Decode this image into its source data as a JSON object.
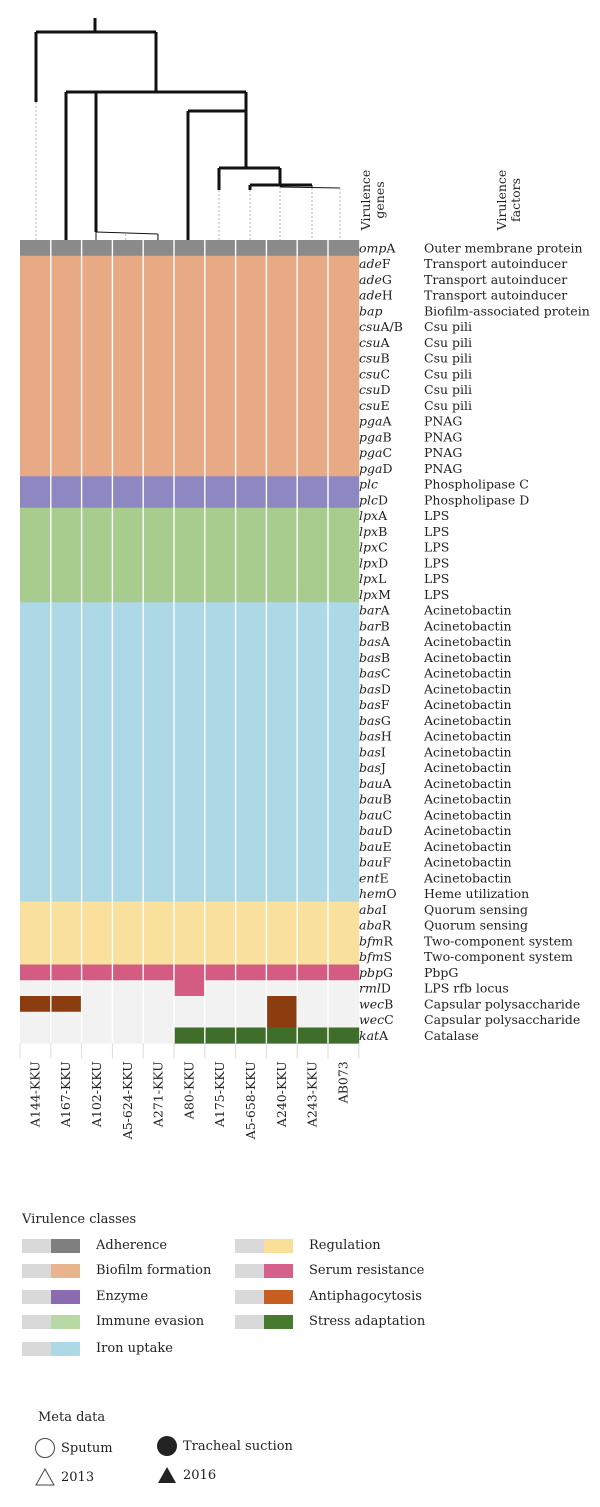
{
  "chart_data": {
    "type": "heatmap",
    "header_labels": {
      "genes": [
        "Virulence",
        "genes"
      ],
      "factors": [
        "Virulence",
        "factors"
      ]
    },
    "isolates": [
      "A144-KKU",
      "A167-KKU",
      "A102-KKU",
      "A5-624-KKU",
      "A271-KKU",
      "A80-KKU",
      "A175-KKU",
      "A5-658-KKU",
      "A240-KKU",
      "A243-KKU",
      "AB073"
    ],
    "rows": [
      {
        "gene_i": "omp",
        "gene_s": "A",
        "factor": "Outer membrane protein",
        "cls": "Adherence",
        "present": [
          1,
          1,
          1,
          1,
          1,
          1,
          1,
          1,
          1,
          1,
          1
        ]
      },
      {
        "gene_i": "ade",
        "gene_s": "F",
        "factor": "Transport autoinducer",
        "cls": "Biofilm formation",
        "present": [
          1,
          1,
          1,
          1,
          1,
          1,
          1,
          1,
          1,
          1,
          1
        ]
      },
      {
        "gene_i": "ade",
        "gene_s": "G",
        "factor": "Transport autoinducer",
        "cls": "Biofilm formation",
        "present": [
          1,
          1,
          1,
          1,
          1,
          1,
          1,
          1,
          1,
          1,
          1
        ]
      },
      {
        "gene_i": "ade",
        "gene_s": "H",
        "factor": "Transport autoinducer",
        "cls": "Biofilm formation",
        "present": [
          1,
          1,
          1,
          1,
          1,
          1,
          1,
          1,
          1,
          1,
          1
        ]
      },
      {
        "gene_i": "bap",
        "gene_s": "",
        "factor": "Biofilm-associated protein",
        "cls": "Biofilm formation",
        "present": [
          1,
          1,
          1,
          1,
          1,
          1,
          1,
          1,
          1,
          1,
          1
        ]
      },
      {
        "gene_i": "csu",
        "gene_s": "A/B",
        "factor": "Csu pili",
        "cls": "Biofilm formation",
        "present": [
          1,
          1,
          1,
          1,
          1,
          1,
          1,
          1,
          1,
          1,
          1
        ]
      },
      {
        "gene_i": "csu",
        "gene_s": "A",
        "factor": "Csu pili",
        "cls": "Biofilm formation",
        "present": [
          1,
          1,
          1,
          1,
          1,
          1,
          1,
          1,
          1,
          1,
          1
        ]
      },
      {
        "gene_i": "csu",
        "gene_s": "B",
        "factor": "Csu pili",
        "cls": "Biofilm formation",
        "present": [
          1,
          1,
          1,
          1,
          1,
          1,
          1,
          1,
          1,
          1,
          1
        ]
      },
      {
        "gene_i": "csu",
        "gene_s": "C",
        "factor": "Csu pili",
        "cls": "Biofilm formation",
        "present": [
          1,
          1,
          1,
          1,
          1,
          1,
          1,
          1,
          1,
          1,
          1
        ]
      },
      {
        "gene_i": "csu",
        "gene_s": "D",
        "factor": "Csu pili",
        "cls": "Biofilm formation",
        "present": [
          1,
          1,
          1,
          1,
          1,
          1,
          1,
          1,
          1,
          1,
          1
        ]
      },
      {
        "gene_i": "csu",
        "gene_s": "E",
        "factor": "Csu pili",
        "cls": "Biofilm formation",
        "present": [
          1,
          1,
          1,
          1,
          1,
          1,
          1,
          1,
          1,
          1,
          1
        ]
      },
      {
        "gene_i": "pga",
        "gene_s": "A",
        "factor": "PNAG",
        "cls": "Biofilm formation",
        "present": [
          1,
          1,
          1,
          1,
          1,
          1,
          1,
          1,
          1,
          1,
          1
        ]
      },
      {
        "gene_i": "pga",
        "gene_s": "B",
        "factor": "PNAG",
        "cls": "Biofilm formation",
        "present": [
          1,
          1,
          1,
          1,
          1,
          1,
          1,
          1,
          1,
          1,
          1
        ]
      },
      {
        "gene_i": "pga",
        "gene_s": "C",
        "factor": "PNAG",
        "cls": "Biofilm formation",
        "present": [
          1,
          1,
          1,
          1,
          1,
          1,
          1,
          1,
          1,
          1,
          1
        ]
      },
      {
        "gene_i": "pga",
        "gene_s": "D",
        "factor": "PNAG",
        "cls": "Biofilm formation",
        "present": [
          1,
          1,
          1,
          1,
          1,
          1,
          1,
          1,
          1,
          1,
          1
        ]
      },
      {
        "gene_i": "plc",
        "gene_s": "",
        "factor": "Phospholipase C",
        "cls": "Enzyme",
        "present": [
          1,
          1,
          1,
          1,
          1,
          1,
          1,
          1,
          1,
          1,
          1
        ]
      },
      {
        "gene_i": "plc",
        "gene_s": "D",
        "factor": "Phospholipase D",
        "cls": "Enzyme",
        "present": [
          1,
          1,
          1,
          1,
          1,
          1,
          1,
          1,
          1,
          1,
          1
        ]
      },
      {
        "gene_i": "lpx",
        "gene_s": "A",
        "factor": "LPS",
        "cls": "Immune evasion",
        "present": [
          1,
          1,
          1,
          1,
          1,
          1,
          1,
          1,
          1,
          1,
          1
        ]
      },
      {
        "gene_i": "lpx",
        "gene_s": "B",
        "factor": "LPS",
        "cls": "Immune evasion",
        "present": [
          1,
          1,
          1,
          1,
          1,
          1,
          1,
          1,
          1,
          1,
          1
        ]
      },
      {
        "gene_i": "lpx",
        "gene_s": "C",
        "factor": "LPS",
        "cls": "Immune evasion",
        "present": [
          1,
          1,
          1,
          1,
          1,
          1,
          1,
          1,
          1,
          1,
          1
        ]
      },
      {
        "gene_i": "lpx",
        "gene_s": "D",
        "factor": "LPS",
        "cls": "Immune evasion",
        "present": [
          1,
          1,
          1,
          1,
          1,
          1,
          1,
          1,
          1,
          1,
          1
        ]
      },
      {
        "gene_i": "lpx",
        "gene_s": "L",
        "factor": "LPS",
        "cls": "Immune evasion",
        "present": [
          1,
          1,
          1,
          1,
          1,
          1,
          1,
          1,
          1,
          1,
          1
        ]
      },
      {
        "gene_i": "lpx",
        "gene_s": "M",
        "factor": "LPS",
        "cls": "Immune evasion",
        "present": [
          1,
          1,
          1,
          1,
          1,
          1,
          1,
          1,
          1,
          1,
          1
        ]
      },
      {
        "gene_i": "bar",
        "gene_s": "A",
        "factor": "Acinetobactin",
        "cls": "Iron uptake",
        "present": [
          1,
          1,
          1,
          1,
          1,
          1,
          1,
          1,
          1,
          1,
          1
        ]
      },
      {
        "gene_i": "bar",
        "gene_s": "B",
        "factor": "Acinetobactin",
        "cls": "Iron uptake",
        "present": [
          1,
          1,
          1,
          1,
          1,
          1,
          1,
          1,
          1,
          1,
          1
        ]
      },
      {
        "gene_i": "bas",
        "gene_s": "A",
        "factor": "Acinetobactin",
        "cls": "Iron uptake",
        "present": [
          1,
          1,
          1,
          1,
          1,
          1,
          1,
          1,
          1,
          1,
          1
        ]
      },
      {
        "gene_i": "bas",
        "gene_s": "B",
        "factor": "Acinetobactin",
        "cls": "Iron uptake",
        "present": [
          1,
          1,
          1,
          1,
          1,
          1,
          1,
          1,
          1,
          1,
          1
        ]
      },
      {
        "gene_i": "bas",
        "gene_s": "C",
        "factor": "Acinetobactin",
        "cls": "Iron uptake",
        "present": [
          1,
          1,
          1,
          1,
          1,
          1,
          1,
          1,
          1,
          1,
          1
        ]
      },
      {
        "gene_i": "bas",
        "gene_s": "D",
        "factor": "Acinetobactin",
        "cls": "Iron uptake",
        "present": [
          1,
          1,
          1,
          1,
          1,
          1,
          1,
          1,
          1,
          1,
          1
        ]
      },
      {
        "gene_i": "bas",
        "gene_s": "F",
        "factor": "Acinetobactin",
        "cls": "Iron uptake",
        "present": [
          1,
          1,
          1,
          1,
          1,
          1,
          1,
          1,
          1,
          1,
          1
        ]
      },
      {
        "gene_i": "bas",
        "gene_s": "G",
        "factor": "Acinetobactin",
        "cls": "Iron uptake",
        "present": [
          1,
          1,
          1,
          1,
          1,
          1,
          1,
          1,
          1,
          1,
          1
        ]
      },
      {
        "gene_i": "bas",
        "gene_s": "H",
        "factor": "Acinetobactin",
        "cls": "Iron uptake",
        "present": [
          1,
          1,
          1,
          1,
          1,
          1,
          1,
          1,
          1,
          1,
          1
        ]
      },
      {
        "gene_i": "bas",
        "gene_s": "I",
        "factor": "Acinetobactin",
        "cls": "Iron uptake",
        "present": [
          1,
          1,
          1,
          1,
          1,
          1,
          1,
          1,
          1,
          1,
          1
        ]
      },
      {
        "gene_i": "bas",
        "gene_s": "J",
        "factor": "Acinetobactin",
        "cls": "Iron uptake",
        "present": [
          1,
          1,
          1,
          1,
          1,
          1,
          1,
          1,
          1,
          1,
          1
        ]
      },
      {
        "gene_i": "bau",
        "gene_s": "A",
        "factor": "Acinetobactin",
        "cls": "Iron uptake",
        "present": [
          1,
          1,
          1,
          1,
          1,
          1,
          1,
          1,
          1,
          1,
          1
        ]
      },
      {
        "gene_i": "bau",
        "gene_s": "B",
        "factor": "Acinetobactin",
        "cls": "Iron uptake",
        "present": [
          1,
          1,
          1,
          1,
          1,
          1,
          1,
          1,
          1,
          1,
          1
        ]
      },
      {
        "gene_i": "bau",
        "gene_s": "C",
        "factor": "Acinetobactin",
        "cls": "Iron uptake",
        "present": [
          1,
          1,
          1,
          1,
          1,
          1,
          1,
          1,
          1,
          1,
          1
        ]
      },
      {
        "gene_i": "bau",
        "gene_s": "D",
        "factor": "Acinetobactin",
        "cls": "Iron uptake",
        "present": [
          1,
          1,
          1,
          1,
          1,
          1,
          1,
          1,
          1,
          1,
          1
        ]
      },
      {
        "gene_i": "bau",
        "gene_s": "E",
        "factor": "Acinetobactin",
        "cls": "Iron uptake",
        "present": [
          1,
          1,
          1,
          1,
          1,
          1,
          1,
          1,
          1,
          1,
          1
        ]
      },
      {
        "gene_i": "bau",
        "gene_s": "F",
        "factor": "Acinetobactin",
        "cls": "Iron uptake",
        "present": [
          1,
          1,
          1,
          1,
          1,
          1,
          1,
          1,
          1,
          1,
          1
        ]
      },
      {
        "gene_i": "ent",
        "gene_s": "E",
        "factor": "Acinetobactin",
        "cls": "Iron uptake",
        "present": [
          1,
          1,
          1,
          1,
          1,
          1,
          1,
          1,
          1,
          1,
          1
        ]
      },
      {
        "gene_i": "hem",
        "gene_s": "O",
        "factor": "Heme utilization",
        "cls": "Iron uptake",
        "present": [
          1,
          1,
          1,
          1,
          1,
          1,
          1,
          1,
          1,
          1,
          1
        ]
      },
      {
        "gene_i": "aba",
        "gene_s": "I",
        "factor": "Quorum sensing",
        "cls": "Regulation",
        "present": [
          1,
          1,
          1,
          1,
          1,
          1,
          1,
          1,
          1,
          1,
          1
        ]
      },
      {
        "gene_i": "aba",
        "gene_s": "R",
        "factor": "Quorum sensing",
        "cls": "Regulation",
        "present": [
          1,
          1,
          1,
          1,
          1,
          1,
          1,
          1,
          1,
          1,
          1
        ]
      },
      {
        "gene_i": "bfm",
        "gene_s": "R",
        "factor": "Two-component system",
        "cls": "Regulation",
        "present": [
          1,
          1,
          1,
          1,
          1,
          1,
          1,
          1,
          1,
          1,
          1
        ]
      },
      {
        "gene_i": "bfm",
        "gene_s": "S",
        "factor": "Two-component system",
        "cls": "Regulation",
        "present": [
          1,
          1,
          1,
          1,
          1,
          1,
          1,
          1,
          1,
          1,
          1
        ]
      },
      {
        "gene_i": "pbp",
        "gene_s": "G",
        "factor": "PbpG",
        "cls": "Serum resistance",
        "present": [
          1,
          1,
          1,
          1,
          1,
          1,
          1,
          1,
          1,
          1,
          1
        ]
      },
      {
        "gene_i": "rml",
        "gene_s": "D",
        "factor": "LPS rfb locus",
        "cls": "Serum resistance",
        "present": [
          0,
          0,
          0,
          0,
          0,
          1,
          0,
          0,
          0,
          0,
          0
        ]
      },
      {
        "gene_i": "wec",
        "gene_s": "B",
        "factor": "Capsular polysaccharide",
        "cls": "Antiphagocytosis",
        "present": [
          1,
          1,
          0,
          0,
          0,
          0,
          0,
          0,
          1,
          0,
          0
        ]
      },
      {
        "gene_i": "wec",
        "gene_s": "C",
        "factor": "Capsular polysaccharide",
        "cls": "Antiphagocytosis",
        "present": [
          0,
          0,
          0,
          0,
          0,
          0,
          0,
          0,
          1,
          0,
          0
        ]
      },
      {
        "gene_i": "kat",
        "gene_s": "A",
        "factor": "Catalase",
        "cls": "Stress adaptation",
        "present": [
          0,
          0,
          0,
          0,
          0,
          1,
          1,
          1,
          1,
          1,
          1
        ]
      }
    ],
    "dendrogram_style": {
      "group1_cols": [
        0,
        1
      ],
      "group2_cols": [
        2,
        3,
        4
      ]
    },
    "legend": {
      "title": "Virulence classes",
      "classes": [
        {
          "name": "Adherence",
          "color": "#7f7f7f"
        },
        {
          "name": "Biofilm formation",
          "color": "#e8b48e"
        },
        {
          "name": "Enzyme",
          "color": "#8a6bb0"
        },
        {
          "name": "Immune evasion",
          "color": "#b9d9a4"
        },
        {
          "name": "Iron uptake",
          "color": "#add8e6"
        },
        {
          "name": "Regulation",
          "color": "#f9df9a"
        },
        {
          "name": "Serum resistance",
          "color": "#d5608a"
        },
        {
          "name": "Antiphagocytosis",
          "color": "#c85e20"
        },
        {
          "name": "Stress adaptation",
          "color": "#467a2f"
        }
      ],
      "absent_color": "#d9d9d9"
    },
    "heatmap_colors": {
      "Adherence": "#8a8a8a",
      "Biofilm formation": "#e8aa84",
      "Enzyme": "#8e88c2",
      "Immune evasion": "#a8cb8e",
      "Iron uptake": "#add8e6",
      "Regulation": "#f9e09c",
      "Serum resistance": "#d45c83",
      "Antiphagocytosis": "#8b3d10",
      "Stress adaptation": "#3e6e2a",
      "absent": "#f2f2f2"
    },
    "meta": {
      "title": "Meta data",
      "sputum": "Sputum",
      "tracheal": "Tracheal suction",
      "y2013": "2013",
      "y2016": "2016"
    }
  }
}
